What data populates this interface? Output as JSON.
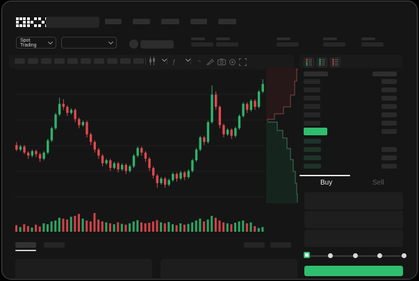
{
  "app": {
    "logo_text": "OKX"
  },
  "colors": {
    "green": "#2fbd6e",
    "red": "#e2484d",
    "candle_green": "#2eb36b",
    "candle_red": "#e2484d",
    "depth_ask_fill": "#261718",
    "depth_ask_line": "#7b4747",
    "depth_bid_fill": "#15251d",
    "depth_bid_line": "#40735f",
    "bid_price_bar": "#1d3328",
    "grid": "#1f1f1f"
  },
  "header": {
    "nav_placeholders": [
      24,
      25,
      26,
      24,
      26
    ],
    "search": {
      "value": "",
      "placeholder": ""
    }
  },
  "subheader": {
    "market_selector": {
      "label": "Spot Trading"
    },
    "pair_selector": {
      "label": ""
    },
    "stat_placeholder_positions": [
      0,
      36,
      123,
      190,
      245
    ]
  },
  "chart_toolbar": {
    "interval_placeholder_count": 10,
    "indicator_glyph": "ƒ",
    "wave_glyph": "~"
  },
  "chart_data": {
    "type": "candlestick",
    "title": "",
    "xlabel": "",
    "ylabel": "",
    "ylim": [
      0,
      100
    ],
    "grid_y_local": [
      2,
      39,
      76,
      113,
      150,
      187
    ],
    "candles_ohlc": [
      [
        45,
        47,
        41,
        42
      ],
      [
        42,
        45,
        41,
        44
      ],
      [
        44,
        45,
        39,
        40
      ],
      [
        40,
        41,
        36,
        38
      ],
      [
        38,
        42,
        37,
        41
      ],
      [
        41,
        42,
        37,
        39
      ],
      [
        39,
        40,
        34,
        36
      ],
      [
        36,
        41,
        35,
        40
      ],
      [
        40,
        49,
        39,
        48
      ],
      [
        48,
        57,
        47,
        56
      ],
      [
        56,
        66,
        55,
        65
      ],
      [
        65,
        76,
        64,
        72
      ],
      [
        72,
        75,
        68,
        70
      ],
      [
        70,
        71,
        64,
        66
      ],
      [
        66,
        69,
        65,
        68
      ],
      [
        68,
        69,
        60,
        62
      ],
      [
        62,
        63,
        56,
        58
      ],
      [
        58,
        61,
        57,
        60
      ],
      [
        60,
        61,
        50,
        52
      ],
      [
        52,
        53,
        45,
        47
      ],
      [
        47,
        48,
        40,
        42
      ],
      [
        42,
        43,
        36,
        38
      ],
      [
        38,
        39,
        31,
        33
      ],
      [
        33,
        36,
        32,
        35
      ],
      [
        35,
        36,
        28,
        30
      ],
      [
        30,
        34,
        29,
        33
      ],
      [
        33,
        34,
        27,
        29
      ],
      [
        29,
        33,
        28,
        32
      ],
      [
        32,
        33,
        26,
        28
      ],
      [
        28,
        32,
        27,
        31
      ],
      [
        31,
        39,
        30,
        38
      ],
      [
        38,
        44,
        37,
        43
      ],
      [
        43,
        44,
        38,
        40
      ],
      [
        40,
        41,
        34,
        36
      ],
      [
        36,
        37,
        28,
        30
      ],
      [
        30,
        31,
        23,
        25
      ],
      [
        25,
        26,
        17,
        20
      ],
      [
        20,
        24,
        19,
        23
      ],
      [
        23,
        24,
        17,
        19
      ],
      [
        19,
        23,
        18,
        22
      ],
      [
        22,
        27,
        21,
        26
      ],
      [
        26,
        27,
        21,
        23
      ],
      [
        23,
        28,
        22,
        27
      ],
      [
        27,
        28,
        22,
        24
      ],
      [
        24,
        29,
        23,
        28
      ],
      [
        28,
        36,
        27,
        35
      ],
      [
        35,
        43,
        34,
        42
      ],
      [
        42,
        51,
        41,
        50
      ],
      [
        50,
        51,
        45,
        47
      ],
      [
        47,
        61,
        46,
        60
      ],
      [
        60,
        84,
        59,
        78
      ],
      [
        78,
        80,
        68,
        70
      ],
      [
        70,
        71,
        56,
        58
      ],
      [
        58,
        59,
        50,
        52
      ],
      [
        52,
        56,
        51,
        55
      ],
      [
        55,
        56,
        49,
        51
      ],
      [
        51,
        57,
        50,
        56
      ],
      [
        56,
        65,
        55,
        64
      ],
      [
        64,
        73,
        63,
        72
      ],
      [
        72,
        73,
        66,
        68
      ],
      [
        68,
        75,
        67,
        74
      ],
      [
        74,
        75,
        68,
        70
      ],
      [
        70,
        81,
        69,
        80
      ],
      [
        80,
        88,
        79,
        85
      ]
    ],
    "volumes": [
      35,
      25,
      40,
      30,
      22,
      38,
      28,
      45,
      40,
      55,
      60,
      75,
      70,
      65,
      80,
      85,
      95,
      70,
      60,
      55,
      100,
      65,
      55,
      50,
      45,
      40,
      50,
      42,
      38,
      45,
      55,
      62,
      50,
      45,
      48,
      55,
      62,
      50,
      45,
      52,
      40,
      35,
      45,
      38,
      42,
      50,
      60,
      70,
      55,
      65,
      85,
      75,
      60,
      50,
      45,
      40,
      48,
      55,
      60,
      45,
      50,
      30,
      20,
      25
    ],
    "depth": {
      "asks_line": [
        [
          46,
          3
        ],
        [
          44,
          20
        ],
        [
          41,
          40
        ],
        [
          35,
          57
        ],
        [
          25,
          67
        ],
        [
          12,
          75
        ],
        [
          2,
          78
        ]
      ],
      "bids_line": [
        [
          2,
          79
        ],
        [
          16,
          91
        ],
        [
          24,
          102
        ],
        [
          30,
          117
        ],
        [
          35,
          133
        ],
        [
          39,
          150
        ],
        [
          42,
          167
        ],
        [
          44,
          183
        ],
        [
          45,
          195
        ]
      ]
    }
  },
  "order_book": {
    "view_toggles": [
      "book-combined-icon",
      "book-bids-icon",
      "book-asks-icon"
    ],
    "ask_row_count": 6,
    "bid_row_count": 4,
    "bid_rows_without_amount": [
      0
    ]
  },
  "trade_panel": {
    "tabs": [
      {
        "label": "Buy",
        "active": true
      },
      {
        "label": "Sell",
        "active": false
      }
    ],
    "field_count": 3,
    "slider": {
      "stops": 5,
      "active_stop": 0
    },
    "submit_label": ""
  },
  "bottom_section": {
    "tab_placeholders": 2,
    "right_placeholders": 2,
    "panel_count": 2
  }
}
